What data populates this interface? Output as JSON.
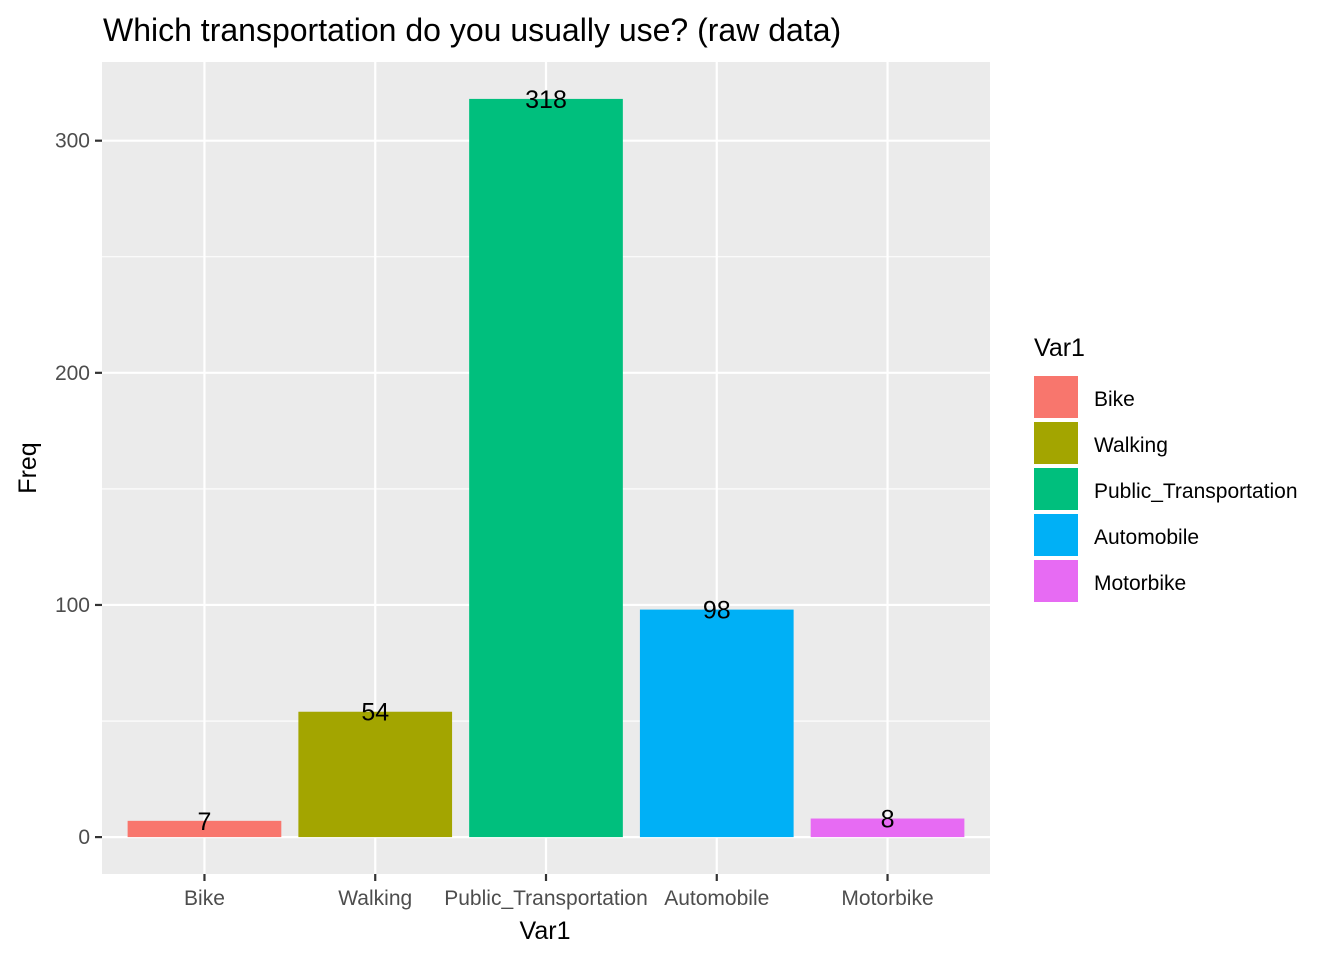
{
  "chart_data": {
    "type": "bar",
    "title": "Which transportation do you usually use? (raw data)",
    "xlabel": "Var1",
    "ylabel": "Freq",
    "categories": [
      "Bike",
      "Walking",
      "Public_Transportation",
      "Automobile",
      "Motorbike"
    ],
    "values": [
      7,
      54,
      318,
      98,
      8
    ],
    "data_labels": [
      "7",
      "54",
      "318",
      "98",
      "8"
    ],
    "colors": [
      "#F8766D",
      "#A3A500",
      "#00BF7D",
      "#00B0F6",
      "#E76BF3"
    ],
    "yticks": [
      0,
      100,
      200,
      300
    ],
    "ylim": [
      -15.9,
      333.9
    ],
    "grid": true,
    "legend": {
      "title": "Var1",
      "position": "right",
      "entries": [
        "Bike",
        "Walking",
        "Public_Transportation",
        "Automobile",
        "Motorbike"
      ]
    }
  }
}
